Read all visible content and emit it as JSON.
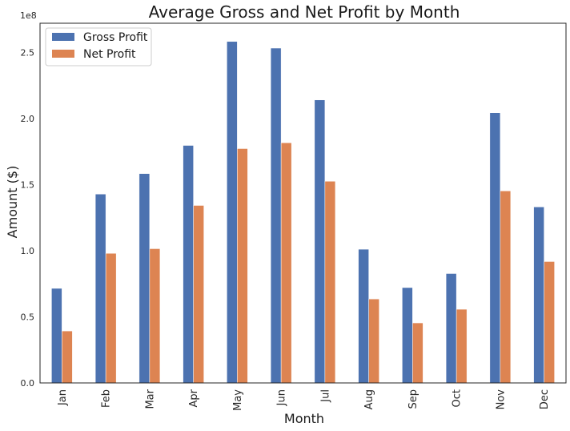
{
  "chart_data": {
    "type": "bar",
    "title": "Average Gross and Net Profit by Month",
    "xlabel": "Month",
    "ylabel": "Amount ($)",
    "y_scale_offset": "1e8",
    "categories": [
      "Jan",
      "Feb",
      "Mar",
      "Apr",
      "May",
      "Jun",
      "Jul",
      "Aug",
      "Sep",
      "Oct",
      "Nov",
      "Dec"
    ],
    "series": [
      {
        "name": "Gross Profit",
        "color": "#4c72b0",
        "values": [
          71500000,
          142800000,
          158300000,
          179600000,
          258200000,
          253200000,
          214000000,
          101100000,
          72100000,
          82700000,
          204300000,
          133100000
        ]
      },
      {
        "name": "Net Profit",
        "color": "#dd8452",
        "values": [
          39300000,
          98000000,
          101500000,
          134200000,
          177200000,
          181600000,
          152500000,
          63500000,
          45400000,
          55700000,
          145200000,
          91800000
        ]
      }
    ],
    "ylim": [
      0,
      272000000
    ],
    "yticks": [
      {
        "value": 0,
        "label": "0.0"
      },
      {
        "value": 50000000,
        "label": "0.5"
      },
      {
        "value": 100000000,
        "label": "1.0"
      },
      {
        "value": 150000000,
        "label": "1.5"
      },
      {
        "value": 200000000,
        "label": "2.0"
      },
      {
        "value": 250000000,
        "label": "2.5"
      }
    ],
    "grid": false,
    "legend_position": "top-left"
  }
}
